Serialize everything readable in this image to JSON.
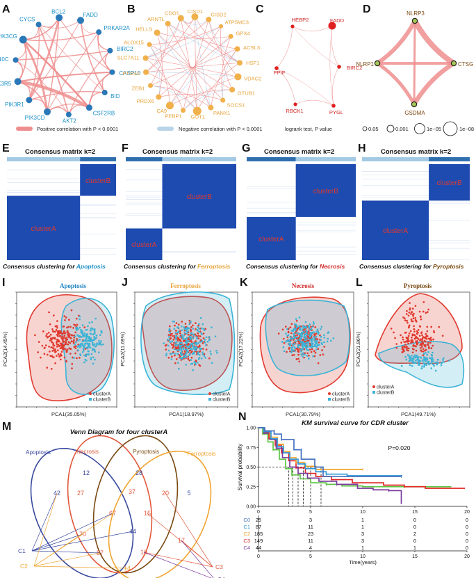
{
  "colors": {
    "blue_node": "#2a78b8",
    "blue_text": "#1a8fc9",
    "orange": "#f0b04a",
    "orange_text": "#e8a33a",
    "red": "#e02020",
    "red_text": "#d02828",
    "brown": "#7a4a12",
    "pos": "#ef8e8e",
    "neg": "#b8d4e8",
    "clusterA": "#e03a2f",
    "clusterB": "#3bb3d6",
    "matrix_dark": "#1e4bb0",
    "matrix_light": "#a3c9e4",
    "c0": "#4470c0",
    "c1": "#2f98d8",
    "c2": "#f0a531",
    "c3": "#e02825",
    "c4": "#7a3a9c",
    "c_green": "#5ec544"
  },
  "panel_labels": {
    "A": "A",
    "B": "B",
    "C": "C",
    "D": "D",
    "E": "E",
    "F": "F",
    "G": "G",
    "H": "H",
    "I": "I",
    "J": "J",
    "K": "K",
    "L": "L",
    "M": "M",
    "N": "N"
  },
  "networkA": {
    "nodes": [
      "FADD",
      "PRKAR2A",
      "BIRC2",
      "CASP10",
      "BID",
      "CSF2RB",
      "AKT2",
      "PIK3CD",
      "PIK3R1",
      "PIK3R5",
      "TNFRSF10C",
      "PIK3CG",
      "CYCS",
      "BCL2"
    ]
  },
  "networkB": {
    "nodes": [
      "CISD1",
      "CISD2",
      "ATP5MC3",
      "GPX4",
      "ACSL3",
      "HSF1",
      "VDAC2",
      "OTUB1",
      "SOCS1",
      "PANX1",
      "GOT1",
      "PEBP1",
      "CA9",
      "PRDX6",
      "ZEB1",
      "PTGS2",
      "SLC7A11",
      "ALOX15",
      "HELLS",
      "ARNTL",
      "CDO1"
    ]
  },
  "networkC": {
    "nodes": [
      "HEBP2",
      "FADD",
      "PPIF",
      "BIRC2",
      "RBCK1",
      "PYGL"
    ]
  },
  "networkD": {
    "nodes": [
      "NLRP3",
      "NLRP1",
      "CTSG",
      "GSDMA"
    ]
  },
  "legend_top": {
    "positive": "Positive correlation with P < 0.0001",
    "negative": "Negative correlation with P < 0.0001",
    "logrank_title": "logrank test, P value",
    "sizes": [
      "0.05",
      "0.001",
      "1e−05",
      "1e−08"
    ]
  },
  "consensus": [
    {
      "title": "Consensus matrix k=2",
      "caption": "Consensus clustering for ",
      "disease": "Apoptosis",
      "big": "clusterA",
      "small": "clusterB"
    },
    {
      "title": "Consensus matrix k=2",
      "caption": "Consensus clustering for ",
      "disease": "Ferroptosis",
      "big": "clusterB",
      "small": "clusterA"
    },
    {
      "title": "Consensus matrix k=2",
      "caption": "Consensus clustering for ",
      "disease": "Necrosis",
      "big": "clusterB",
      "small": "clusterA"
    },
    {
      "title": "Consensus matrix k=2",
      "caption": "Consensus clustering for ",
      "disease": "Pyroptosis",
      "big": "clusterA",
      "small": "clusterB"
    }
  ],
  "pca": [
    {
      "title": "Apoptosis",
      "xlabel": "PCA1(35.05%)",
      "ylabel": "PCA2(14.45%)",
      "legendA": "clusterA",
      "legendB": "clusterB"
    },
    {
      "title": "Ferroptosis",
      "xlabel": "PCA1(18.97%)",
      "ylabel": "PCA2(11.69%)",
      "legendA": "clusterA",
      "legendB": "clusterB"
    },
    {
      "title": "Necrosis",
      "xlabel": "PCA1(30.79%)",
      "ylabel": "PCA2(17.22%)",
      "legendA": "clusterA",
      "legendB": "clusterB"
    },
    {
      "title": "Pyroptosis",
      "xlabel": "PCA1(49.71%)",
      "ylabel": "PCA2(21.86%)",
      "legendA": "clusterA",
      "legendB": "clusterB"
    }
  ],
  "venn": {
    "title": "Venn Diagram for four clusterA",
    "sets": [
      "Apoptosis",
      "Necrosis",
      "Pyroptosis",
      "Ferroptosis"
    ],
    "groups": [
      "C1",
      "C2",
      "C3",
      "C4"
    ],
    "numbers": [
      "12",
      "28",
      "42",
      "27",
      "37",
      "20",
      "5",
      "67",
      "15",
      "70",
      "44",
      "17",
      "57",
      "10",
      "14"
    ]
  },
  "chart_data": {
    "type": "line",
    "title": "KM survival curve for CDR cluster",
    "xlabel": "Time(years)",
    "ylabel": "Survival probability",
    "pvalue": "P=0.020",
    "xlim": [
      0,
      20
    ],
    "ylim": [
      0,
      1
    ],
    "x_ticks": [
      "0",
      "5",
      "10",
      "15",
      "20"
    ],
    "y_ticks": [
      "0.00",
      "0.25",
      "0.50",
      "0.75",
      "1.00"
    ],
    "risk_times": [
      "0",
      "5",
      "10",
      "15",
      "20"
    ],
    "series": [
      {
        "name": "C0",
        "color": "#4470c0",
        "risk": [
          "25",
          "3",
          "1",
          "0",
          "0"
        ],
        "points": [
          [
            0,
            1
          ],
          [
            0.6,
            1
          ],
          [
            0.6,
            0.96
          ],
          [
            1.5,
            0.96
          ],
          [
            1.5,
            0.92
          ],
          [
            2.2,
            0.92
          ],
          [
            2.2,
            0.85
          ],
          [
            3.4,
            0.85
          ],
          [
            3.4,
            0.72
          ],
          [
            4.1,
            0.72
          ],
          [
            4.1,
            0.6
          ],
          [
            5.4,
            0.6
          ],
          [
            5.4,
            0.5
          ],
          [
            6.2,
            0.5
          ],
          [
            6.2,
            0.38
          ],
          [
            13.7,
            0.38
          ]
        ]
      },
      {
        "name": "C1",
        "color": "#2f98d8",
        "risk": [
          "87",
          "11",
          "1",
          "0",
          "0"
        ],
        "points": [
          [
            0,
            1
          ],
          [
            0.5,
            0.95
          ],
          [
            1.2,
            0.86
          ],
          [
            1.8,
            0.76
          ],
          [
            2.4,
            0.68
          ],
          [
            3,
            0.6
          ],
          [
            3.8,
            0.54
          ],
          [
            4.5,
            0.48
          ],
          [
            5.5,
            0.44
          ],
          [
            6.5,
            0.41
          ],
          [
            8.5,
            0.39
          ],
          [
            13.8,
            0.39
          ]
        ]
      },
      {
        "name": "C2",
        "color": "#f0a531",
        "risk": [
          "185",
          "23",
          "3",
          "2",
          "0"
        ],
        "points": [
          [
            0,
            1
          ],
          [
            0.5,
            0.95
          ],
          [
            1.1,
            0.88
          ],
          [
            1.8,
            0.79
          ],
          [
            2.4,
            0.7
          ],
          [
            3,
            0.62
          ],
          [
            3.6,
            0.56
          ],
          [
            4.4,
            0.51
          ],
          [
            5.5,
            0.47
          ],
          [
            10,
            0.47
          ]
        ]
      },
      {
        "name": "C3",
        "color": "#e02825",
        "risk": [
          "149",
          "11",
          "3",
          "0",
          "0"
        ],
        "points": [
          [
            0,
            1
          ],
          [
            0.5,
            0.94
          ],
          [
            1,
            0.86
          ],
          [
            1.6,
            0.78
          ],
          [
            2.2,
            0.68
          ],
          [
            2.9,
            0.58
          ],
          [
            3.6,
            0.49
          ],
          [
            4.5,
            0.42
          ],
          [
            5.5,
            0.38
          ],
          [
            7,
            0.34
          ],
          [
            9,
            0.3
          ],
          [
            12,
            0.27
          ],
          [
            14,
            0.25
          ],
          [
            16,
            0.23
          ],
          [
            19.8,
            0.23
          ]
        ]
      },
      {
        "name": "C4",
        "color": "#7a3a9c",
        "risk": [
          "44",
          "4",
          "1",
          "1",
          "0"
        ],
        "points": [
          [
            0,
            1
          ],
          [
            0.5,
            0.93
          ],
          [
            1.1,
            0.85
          ],
          [
            1.7,
            0.74
          ],
          [
            2.3,
            0.62
          ],
          [
            3,
            0.5
          ],
          [
            3.8,
            0.42
          ],
          [
            4.7,
            0.36
          ],
          [
            5.8,
            0.32
          ],
          [
            7.5,
            0.28
          ],
          [
            9.5,
            0.23
          ],
          [
            11,
            0.21
          ],
          [
            12.5,
            0.2
          ],
          [
            13.7,
            0.2
          ],
          [
            13.7,
            0.03
          ]
        ]
      },
      {
        "name": "",
        "color": "#5ec544",
        "risk": [],
        "points": [
          [
            0,
            1
          ],
          [
            0.4,
            0.92
          ],
          [
            0.9,
            0.82
          ],
          [
            1.4,
            0.72
          ],
          [
            2,
            0.6
          ],
          [
            2.6,
            0.48
          ],
          [
            3.2,
            0.4
          ],
          [
            4,
            0.35
          ],
          [
            5,
            0.3
          ],
          [
            6.5,
            0.28
          ],
          [
            8,
            0.26
          ],
          [
            10,
            0.25
          ],
          [
            14,
            0.25
          ],
          [
            18.5,
            0.25
          ]
        ]
      }
    ],
    "median_ticks": [
      2.9,
      3.3,
      3.8,
      4.3,
      5,
      6
    ]
  }
}
